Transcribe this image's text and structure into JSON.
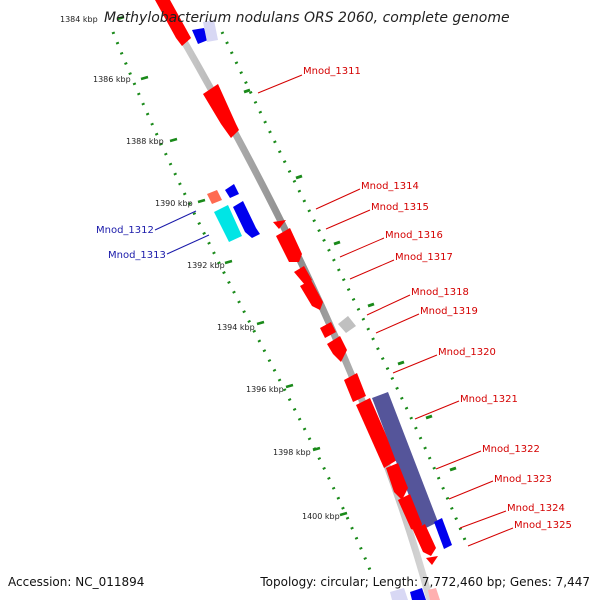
{
  "title": "Methylobacterium nodulans ORS 2060, complete genome",
  "footer": {
    "accession": "Accession: NC_011894",
    "summary": "Topology: circular; Length: 7,772,460 bp; Genes: 7,447"
  },
  "ticks": [
    "1384 kbp",
    "1386 kbp",
    "1388 kbp",
    "1390 kbp",
    "1392 kbp",
    "1394 kbp",
    "1396 kbp",
    "1398 kbp",
    "1400 kbp"
  ],
  "gene_labels_right": [
    "Mnod_1311",
    "Mnod_1314",
    "Mnod_1315",
    "Mnod_1316",
    "Mnod_1317",
    "Mnod_1318",
    "Mnod_1319",
    "Mnod_1320",
    "Mnod_1321",
    "Mnod_1322",
    "Mnod_1323",
    "Mnod_1324",
    "Mnod_1325"
  ],
  "gene_labels_left": [
    "Mnod_1312",
    "Mnod_1313"
  ],
  "colors": {
    "forward_gene": "#ff0000",
    "reverse_gene": "#0000ee",
    "highlight_blue": "#00e5e5",
    "pseudo_gene": "#c0c0c0",
    "region": "#55559a",
    "label_red": "#d40000",
    "label_blue": "#1a1aaa",
    "tick_dots": "#1a8a1a"
  }
}
